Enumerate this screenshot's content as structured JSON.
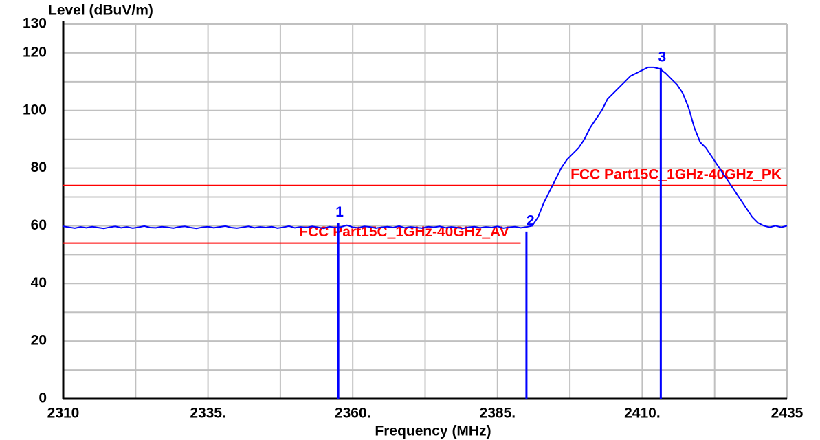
{
  "chart_data": {
    "type": "line",
    "ylabel": "Level (dBuV/m)",
    "xlabel": "Frequency (MHz)",
    "xlim": [
      2310,
      2435
    ],
    "ylim": [
      0,
      130
    ],
    "xticks": [
      2310,
      {
        "value": 2335,
        "label": "2335."
      },
      {
        "value": 2360,
        "label": "2360."
      },
      {
        "value": 2385,
        "label": "2385."
      },
      {
        "value": 2410,
        "label": "2410."
      },
      2435
    ],
    "xminorticks": [
      2322.5,
      2347.5,
      2372.5,
      2397.5,
      2422.5
    ],
    "yticks": [
      0,
      20,
      40,
      60,
      80,
      100,
      120,
      130
    ],
    "yminorticks": [
      10,
      30,
      50,
      70,
      90,
      110
    ],
    "grid": true,
    "x": [
      2310,
      2311,
      2312,
      2313,
      2314,
      2315,
      2316,
      2317,
      2318,
      2319,
      2320,
      2321,
      2322,
      2323,
      2324,
      2325,
      2326,
      2327,
      2328,
      2329,
      2330,
      2331,
      2332,
      2333,
      2334,
      2335,
      2336,
      2337,
      2338,
      2339,
      2340,
      2341,
      2342,
      2343,
      2344,
      2345,
      2346,
      2347,
      2348,
      2349,
      2350,
      2351,
      2352,
      2353,
      2354,
      2355,
      2356,
      2357,
      2358,
      2359,
      2360,
      2361,
      2362,
      2363,
      2364,
      2365,
      2366,
      2367,
      2368,
      2369,
      2370,
      2371,
      2372,
      2373,
      2374,
      2375,
      2376,
      2377,
      2378,
      2379,
      2380,
      2381,
      2382,
      2383,
      2384,
      2385,
      2386,
      2387,
      2388,
      2389,
      2390,
      2391,
      2392,
      2393,
      2394,
      2395,
      2396,
      2397,
      2398,
      2399,
      2400,
      2401,
      2402,
      2403,
      2404,
      2405,
      2406,
      2407,
      2408,
      2409,
      2410,
      2411,
      2412,
      2413,
      2414,
      2415,
      2416,
      2417,
      2418,
      2419,
      2420,
      2421,
      2422,
      2423,
      2424,
      2425,
      2426,
      2427,
      2428,
      2429,
      2430,
      2431,
      2432,
      2433,
      2434,
      2435
    ],
    "series": [
      {
        "color": "#0000ff",
        "values": [
          59.8,
          59.5,
          59.2,
          59.6,
          59.3,
          59.7,
          59.4,
          59.1,
          59.5,
          59.8,
          59.3,
          59.6,
          59.2,
          59.5,
          59.9,
          59.4,
          59.3,
          59.7,
          59.5,
          59.2,
          59.6,
          59.8,
          59.4,
          59.1,
          59.5,
          59.7,
          59.3,
          59.6,
          59.9,
          59.4,
          59.2,
          59.5,
          59.8,
          59.3,
          59.6,
          59.4,
          59.7,
          59.2,
          59.5,
          59.9,
          59.3,
          59.6,
          59.4,
          59.8,
          59.5,
          59.1,
          59.7,
          59.4,
          59.6,
          60.2,
          59.5,
          59.3,
          59.8,
          59.6,
          59.2,
          59.5,
          59.7,
          59.4,
          59.9,
          59.3,
          59.6,
          59.4,
          59.2,
          59.7,
          59.5,
          59.8,
          59.3,
          59.6,
          59.4,
          59.1,
          59.5,
          59.7,
          59.3,
          59.6,
          59.4,
          59.8,
          59.2,
          59.5,
          59.7,
          59.3,
          59.6,
          60,
          63,
          68,
          72,
          76,
          80,
          83,
          85,
          87,
          90,
          94,
          97,
          100,
          104,
          106,
          108,
          110,
          112,
          113,
          114,
          115,
          115,
          114.5,
          113,
          111,
          109,
          106,
          101,
          94,
          89,
          87,
          84,
          81,
          78,
          75,
          72,
          69,
          66,
          63,
          61,
          60,
          59.5,
          60,
          59.5,
          60
        ]
      }
    ],
    "limits": [
      {
        "name": "FCC Part15C_1GHz-40GHz_PK",
        "value": 74,
        "color": "#ff0000"
      },
      {
        "name": "FCC Part15C_1GHz-40GHz_AV",
        "value": 54,
        "color": "#ff0000"
      }
    ],
    "markers": [
      {
        "label": "1",
        "x": 2357.5,
        "value": 61,
        "color": "#0000ff"
      },
      {
        "label": "2",
        "x": 2390,
        "value": 58,
        "color": "#0000ff"
      },
      {
        "label": "3",
        "x": 2413.2,
        "value": 114.8,
        "color": "#0000ff"
      }
    ]
  }
}
